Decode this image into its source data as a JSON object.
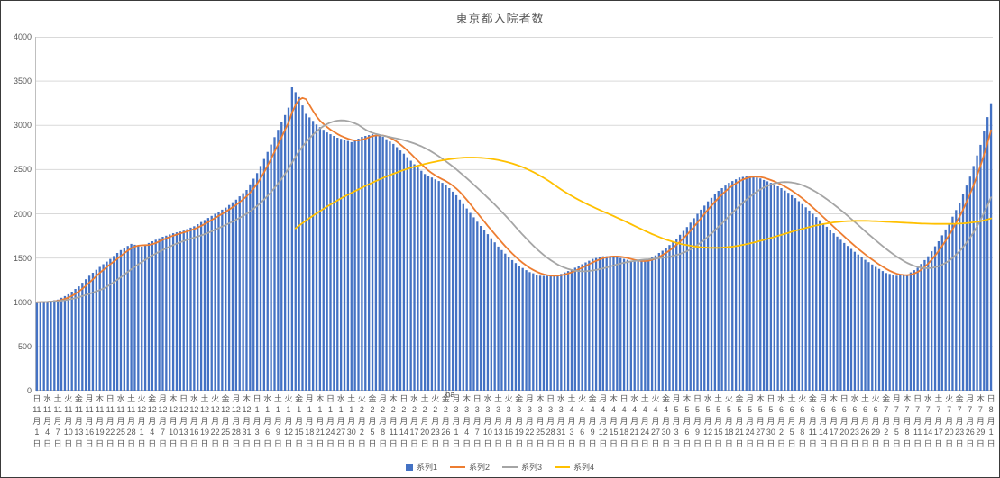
{
  "chart_data": {
    "type": "bar",
    "title": "東京都入院者数",
    "ylim": [
      0,
      4000
    ],
    "y_ticks": [
      0,
      500,
      1000,
      1500,
      2000,
      2500,
      3000,
      3500,
      4000
    ],
    "grid": "horizontal",
    "legend_position": "bottom",
    "colors": {
      "grid": "#D9D9D9",
      "axis_line": "#BFBFBF",
      "text": "#595959"
    },
    "label_month_suffix": "月",
    "label_day_suffix": "日",
    "tick_step_days": 3,
    "artifact_text": "ha",
    "x_tick_labels": [
      [
        "日",
        "11",
        "1"
      ],
      [
        "水",
        "11",
        "4"
      ],
      [
        "土",
        "11",
        "7"
      ],
      [
        "火",
        "11",
        "10"
      ],
      [
        "金",
        "11",
        "13"
      ],
      [
        "月",
        "11",
        "16"
      ],
      [
        "木",
        "11",
        "19"
      ],
      [
        "日",
        "11",
        "22"
      ],
      [
        "水",
        "11",
        "25"
      ],
      [
        "土",
        "11",
        "28"
      ],
      [
        "火",
        "12",
        "1"
      ],
      [
        "金",
        "12",
        "4"
      ],
      [
        "月",
        "12",
        "7"
      ],
      [
        "木",
        "12",
        "10"
      ],
      [
        "日",
        "12",
        "13"
      ],
      [
        "水",
        "12",
        "16"
      ],
      [
        "土",
        "12",
        "19"
      ],
      [
        "火",
        "12",
        "22"
      ],
      [
        "金",
        "12",
        "25"
      ],
      [
        "月",
        "12",
        "28"
      ],
      [
        "木",
        "12",
        "31"
      ],
      [
        "日",
        "1",
        "3"
      ],
      [
        "水",
        "1",
        "6"
      ],
      [
        "土",
        "1",
        "9"
      ],
      [
        "火",
        "1",
        "12"
      ],
      [
        "金",
        "1",
        "15"
      ],
      [
        "月",
        "1",
        "18"
      ],
      [
        "木",
        "1",
        "21"
      ],
      [
        "日",
        "1",
        "24"
      ],
      [
        "水",
        "1",
        "27"
      ],
      [
        "土",
        "1",
        "30"
      ],
      [
        "火",
        "2",
        "2"
      ],
      [
        "金",
        "2",
        "5"
      ],
      [
        "月",
        "2",
        "8"
      ],
      [
        "木",
        "2",
        "11"
      ],
      [
        "日",
        "2",
        "14"
      ],
      [
        "水",
        "2",
        "17"
      ],
      [
        "土",
        "2",
        "20"
      ],
      [
        "火",
        "2",
        "23"
      ],
      [
        "金",
        "2",
        "26"
      ],
      [
        "月",
        "3",
        "1"
      ],
      [
        "木",
        "3",
        "4"
      ],
      [
        "日",
        "3",
        "7"
      ],
      [
        "水",
        "3",
        "10"
      ],
      [
        "土",
        "3",
        "13"
      ],
      [
        "火",
        "3",
        "16"
      ],
      [
        "金",
        "3",
        "19"
      ],
      [
        "月",
        "3",
        "22"
      ],
      [
        "木",
        "3",
        "25"
      ],
      [
        "日",
        "3",
        "28"
      ],
      [
        "水",
        "3",
        "31"
      ],
      [
        "土",
        "4",
        "3"
      ],
      [
        "火",
        "4",
        "6"
      ],
      [
        "金",
        "4",
        "9"
      ],
      [
        "月",
        "4",
        "12"
      ],
      [
        "木",
        "4",
        "15"
      ],
      [
        "日",
        "4",
        "18"
      ],
      [
        "水",
        "4",
        "21"
      ],
      [
        "土",
        "4",
        "24"
      ],
      [
        "火",
        "4",
        "27"
      ],
      [
        "金",
        "4",
        "30"
      ],
      [
        "月",
        "5",
        "3"
      ],
      [
        "木",
        "5",
        "6"
      ],
      [
        "日",
        "5",
        "9"
      ],
      [
        "水",
        "5",
        "12"
      ],
      [
        "土",
        "5",
        "15"
      ],
      [
        "火",
        "5",
        "18"
      ],
      [
        "金",
        "5",
        "21"
      ],
      [
        "月",
        "5",
        "24"
      ],
      [
        "木",
        "5",
        "27"
      ],
      [
        "日",
        "5",
        "30"
      ],
      [
        "水",
        "6",
        "2"
      ],
      [
        "土",
        "6",
        "5"
      ],
      [
        "火",
        "6",
        "8"
      ],
      [
        "金",
        "6",
        "11"
      ],
      [
        "月",
        "6",
        "14"
      ],
      [
        "木",
        "6",
        "17"
      ],
      [
        "日",
        "6",
        "20"
      ],
      [
        "水",
        "6",
        "23"
      ],
      [
        "土",
        "6",
        "26"
      ],
      [
        "火",
        "6",
        "29"
      ],
      [
        "金",
        "7",
        "2"
      ],
      [
        "月",
        "7",
        "5"
      ],
      [
        "木",
        "7",
        "8"
      ],
      [
        "日",
        "7",
        "11"
      ],
      [
        "水",
        "7",
        "14"
      ],
      [
        "土",
        "7",
        "17"
      ],
      [
        "火",
        "7",
        "20"
      ],
      [
        "金",
        "7",
        "23"
      ],
      [
        "月",
        "7",
        "26"
      ],
      [
        "木",
        "7",
        "29"
      ],
      [
        "日",
        "8",
        "1"
      ]
    ],
    "series": [
      {
        "name": "系列1",
        "kind": "bar",
        "color": "#4472C4",
        "values": [
          1000,
          1003,
          1007,
          1010,
          1017,
          1023,
          1030,
          1050,
          1070,
          1090,
          1120,
          1150,
          1180,
          1220,
          1260,
          1300,
          1333,
          1367,
          1400,
          1430,
          1460,
          1490,
          1523,
          1557,
          1590,
          1613,
          1637,
          1660,
          1650,
          1640,
          1630,
          1650,
          1670,
          1690,
          1707,
          1723,
          1740,
          1753,
          1767,
          1780,
          1790,
          1800,
          1810,
          1827,
          1843,
          1860,
          1883,
          1907,
          1930,
          1953,
          1977,
          2000,
          2023,
          2047,
          2070,
          2100,
          2130,
          2160,
          2197,
          2233,
          2270,
          2333,
          2397,
          2460,
          2540,
          2620,
          2700,
          2783,
          2867,
          2950,
          3033,
          3117,
          3200,
          3430,
          3375,
          3320,
          3225,
          3130,
          3090,
          3050,
          3010,
          2980,
          2950,
          2920,
          2900,
          2880,
          2860,
          2848,
          2835,
          2823,
          2810,
          2830,
          2850,
          2870,
          2880,
          2890,
          2900,
          2890,
          2880,
          2870,
          2843,
          2817,
          2790,
          2753,
          2717,
          2680,
          2640,
          2600,
          2560,
          2523,
          2487,
          2450,
          2430,
          2410,
          2390,
          2370,
          2350,
          2330,
          2290,
          2250,
          2210,
          2160,
          2110,
          2060,
          2010,
          1960,
          1910,
          1863,
          1817,
          1770,
          1723,
          1677,
          1630,
          1590,
          1550,
          1510,
          1477,
          1443,
          1410,
          1387,
          1363,
          1340,
          1327,
          1313,
          1300,
          1298,
          1297,
          1295,
          1303,
          1312,
          1320,
          1337,
          1353,
          1370,
          1390,
          1410,
          1430,
          1450,
          1470,
          1490,
          1500,
          1510,
          1520,
          1520,
          1520,
          1520,
          1510,
          1500,
          1490,
          1480,
          1470,
          1460,
          1463,
          1467,
          1470,
          1490,
          1510,
          1530,
          1557,
          1583,
          1610,
          1647,
          1683,
          1720,
          1763,
          1807,
          1850,
          1900,
          1950,
          2000,
          2047,
          2093,
          2140,
          2180,
          2220,
          2260,
          2290,
          2320,
          2350,
          2370,
          2390,
          2410,
          2417,
          2423,
          2430,
          2420,
          2410,
          2400,
          2383,
          2367,
          2350,
          2330,
          2310,
          2290,
          2263,
          2237,
          2210,
          2177,
          2143,
          2110,
          2073,
          2037,
          2000,
          1963,
          1927,
          1890,
          1853,
          1817,
          1780,
          1743,
          1707,
          1670,
          1637,
          1603,
          1570,
          1540,
          1510,
          1480,
          1453,
          1427,
          1400,
          1377,
          1353,
          1330,
          1320,
          1310,
          1300,
          1303,
          1307,
          1310,
          1337,
          1363,
          1390,
          1433,
          1477,
          1520,
          1577,
          1633,
          1690,
          1757,
          1823,
          1890,
          1967,
          2043,
          2120,
          2220,
          2320,
          2420,
          2540,
          2660,
          2780,
          2937,
          3093,
          3250
        ]
      },
      {
        "name": "系列2",
        "kind": "moving_average",
        "color": "#ED7D31",
        "window": 5,
        "min_points": 1
      },
      {
        "name": "系列3",
        "kind": "moving_average",
        "color": "#A5A5A5",
        "window": 20,
        "min_points": 1
      },
      {
        "name": "系列4",
        "kind": "moving_average",
        "color": "#FFC000",
        "window": 75,
        "min_points": 75
      }
    ]
  }
}
